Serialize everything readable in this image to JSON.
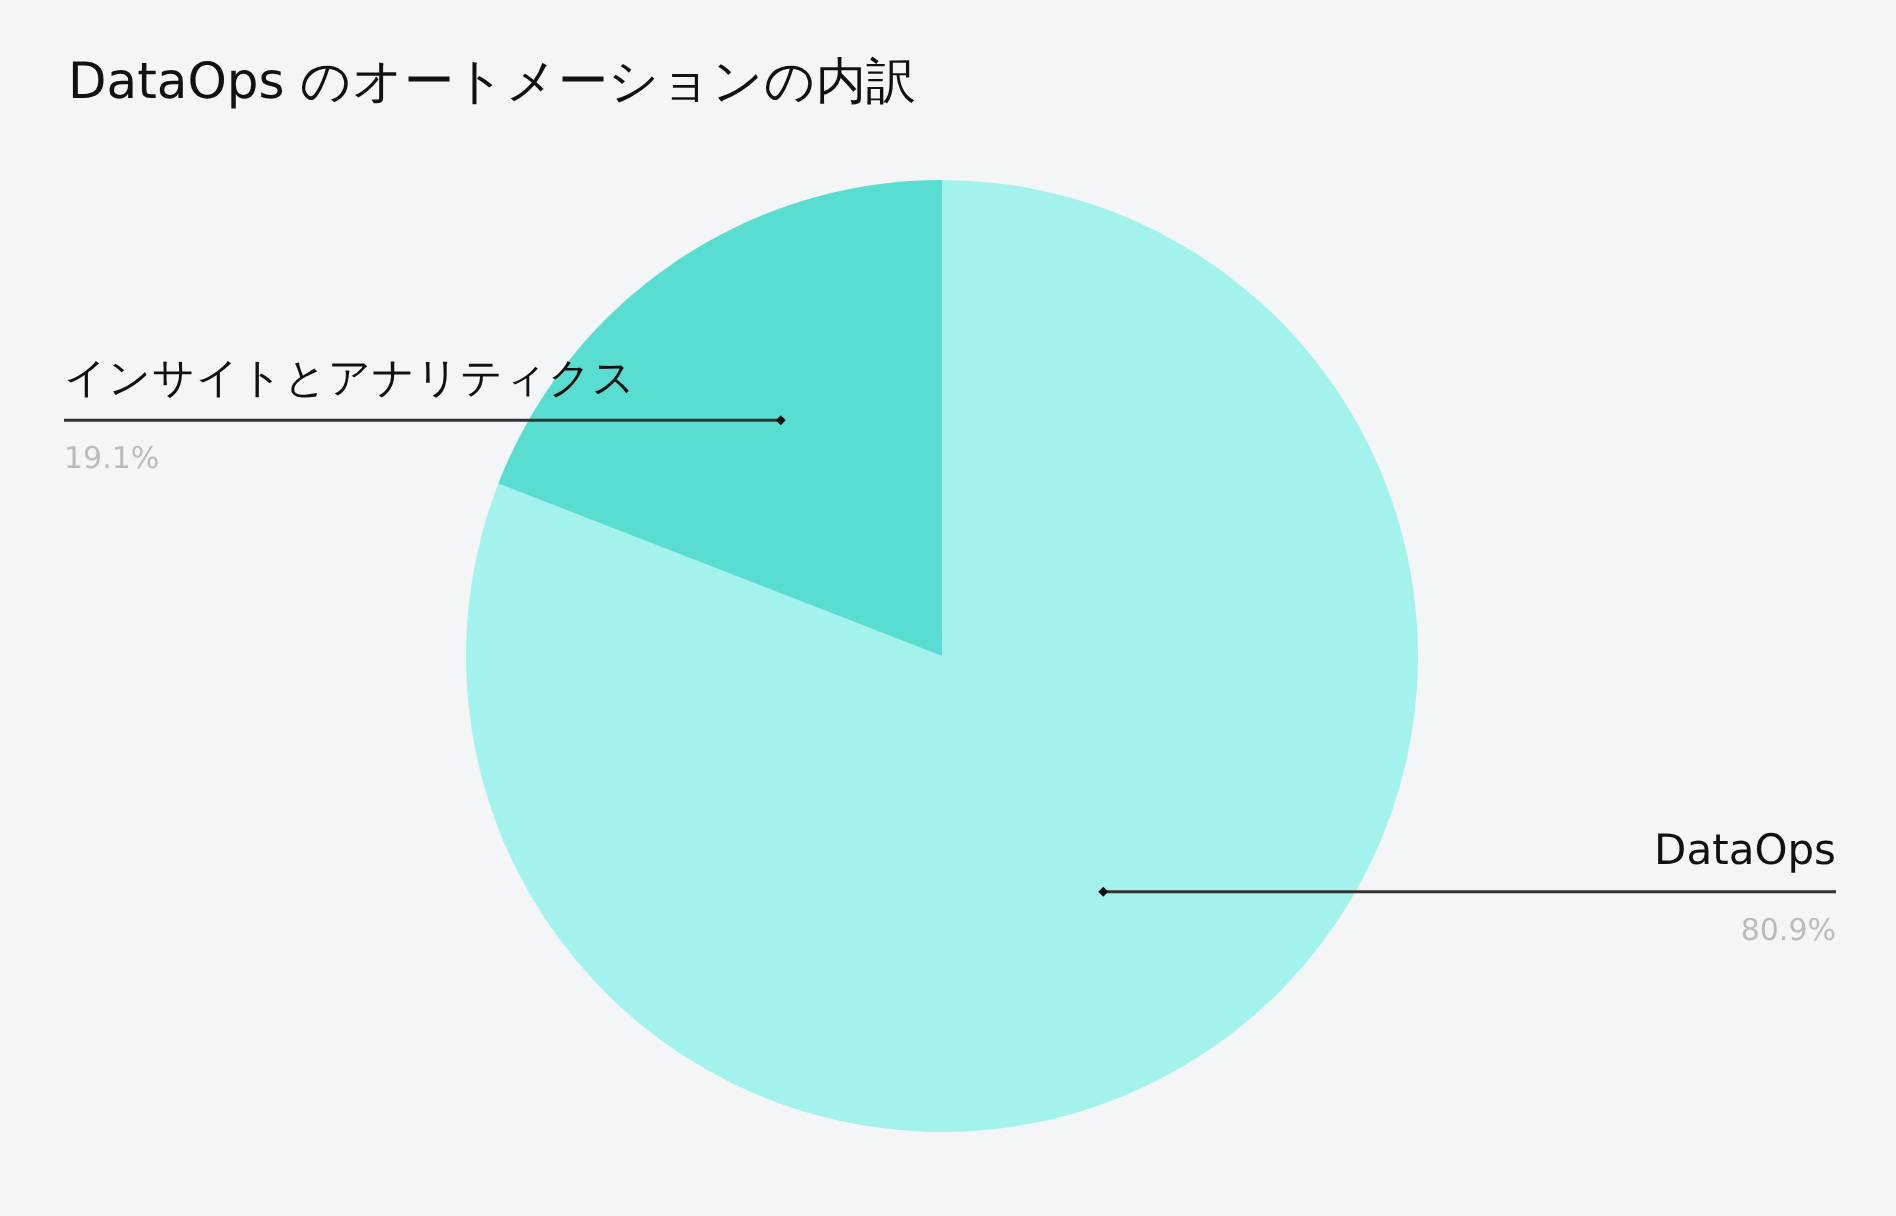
{
  "chart_data": {
    "type": "pie",
    "title": "DataOps のオートメーションの内訳",
    "categories": [
      "DataOps",
      "インサイトとアナリティクス"
    ],
    "values": [
      80.9,
      19.1
    ],
    "colors": [
      "#a3f3ec",
      "#58ddd0"
    ],
    "value_labels": [
      "80.9%",
      "19.1%"
    ]
  }
}
